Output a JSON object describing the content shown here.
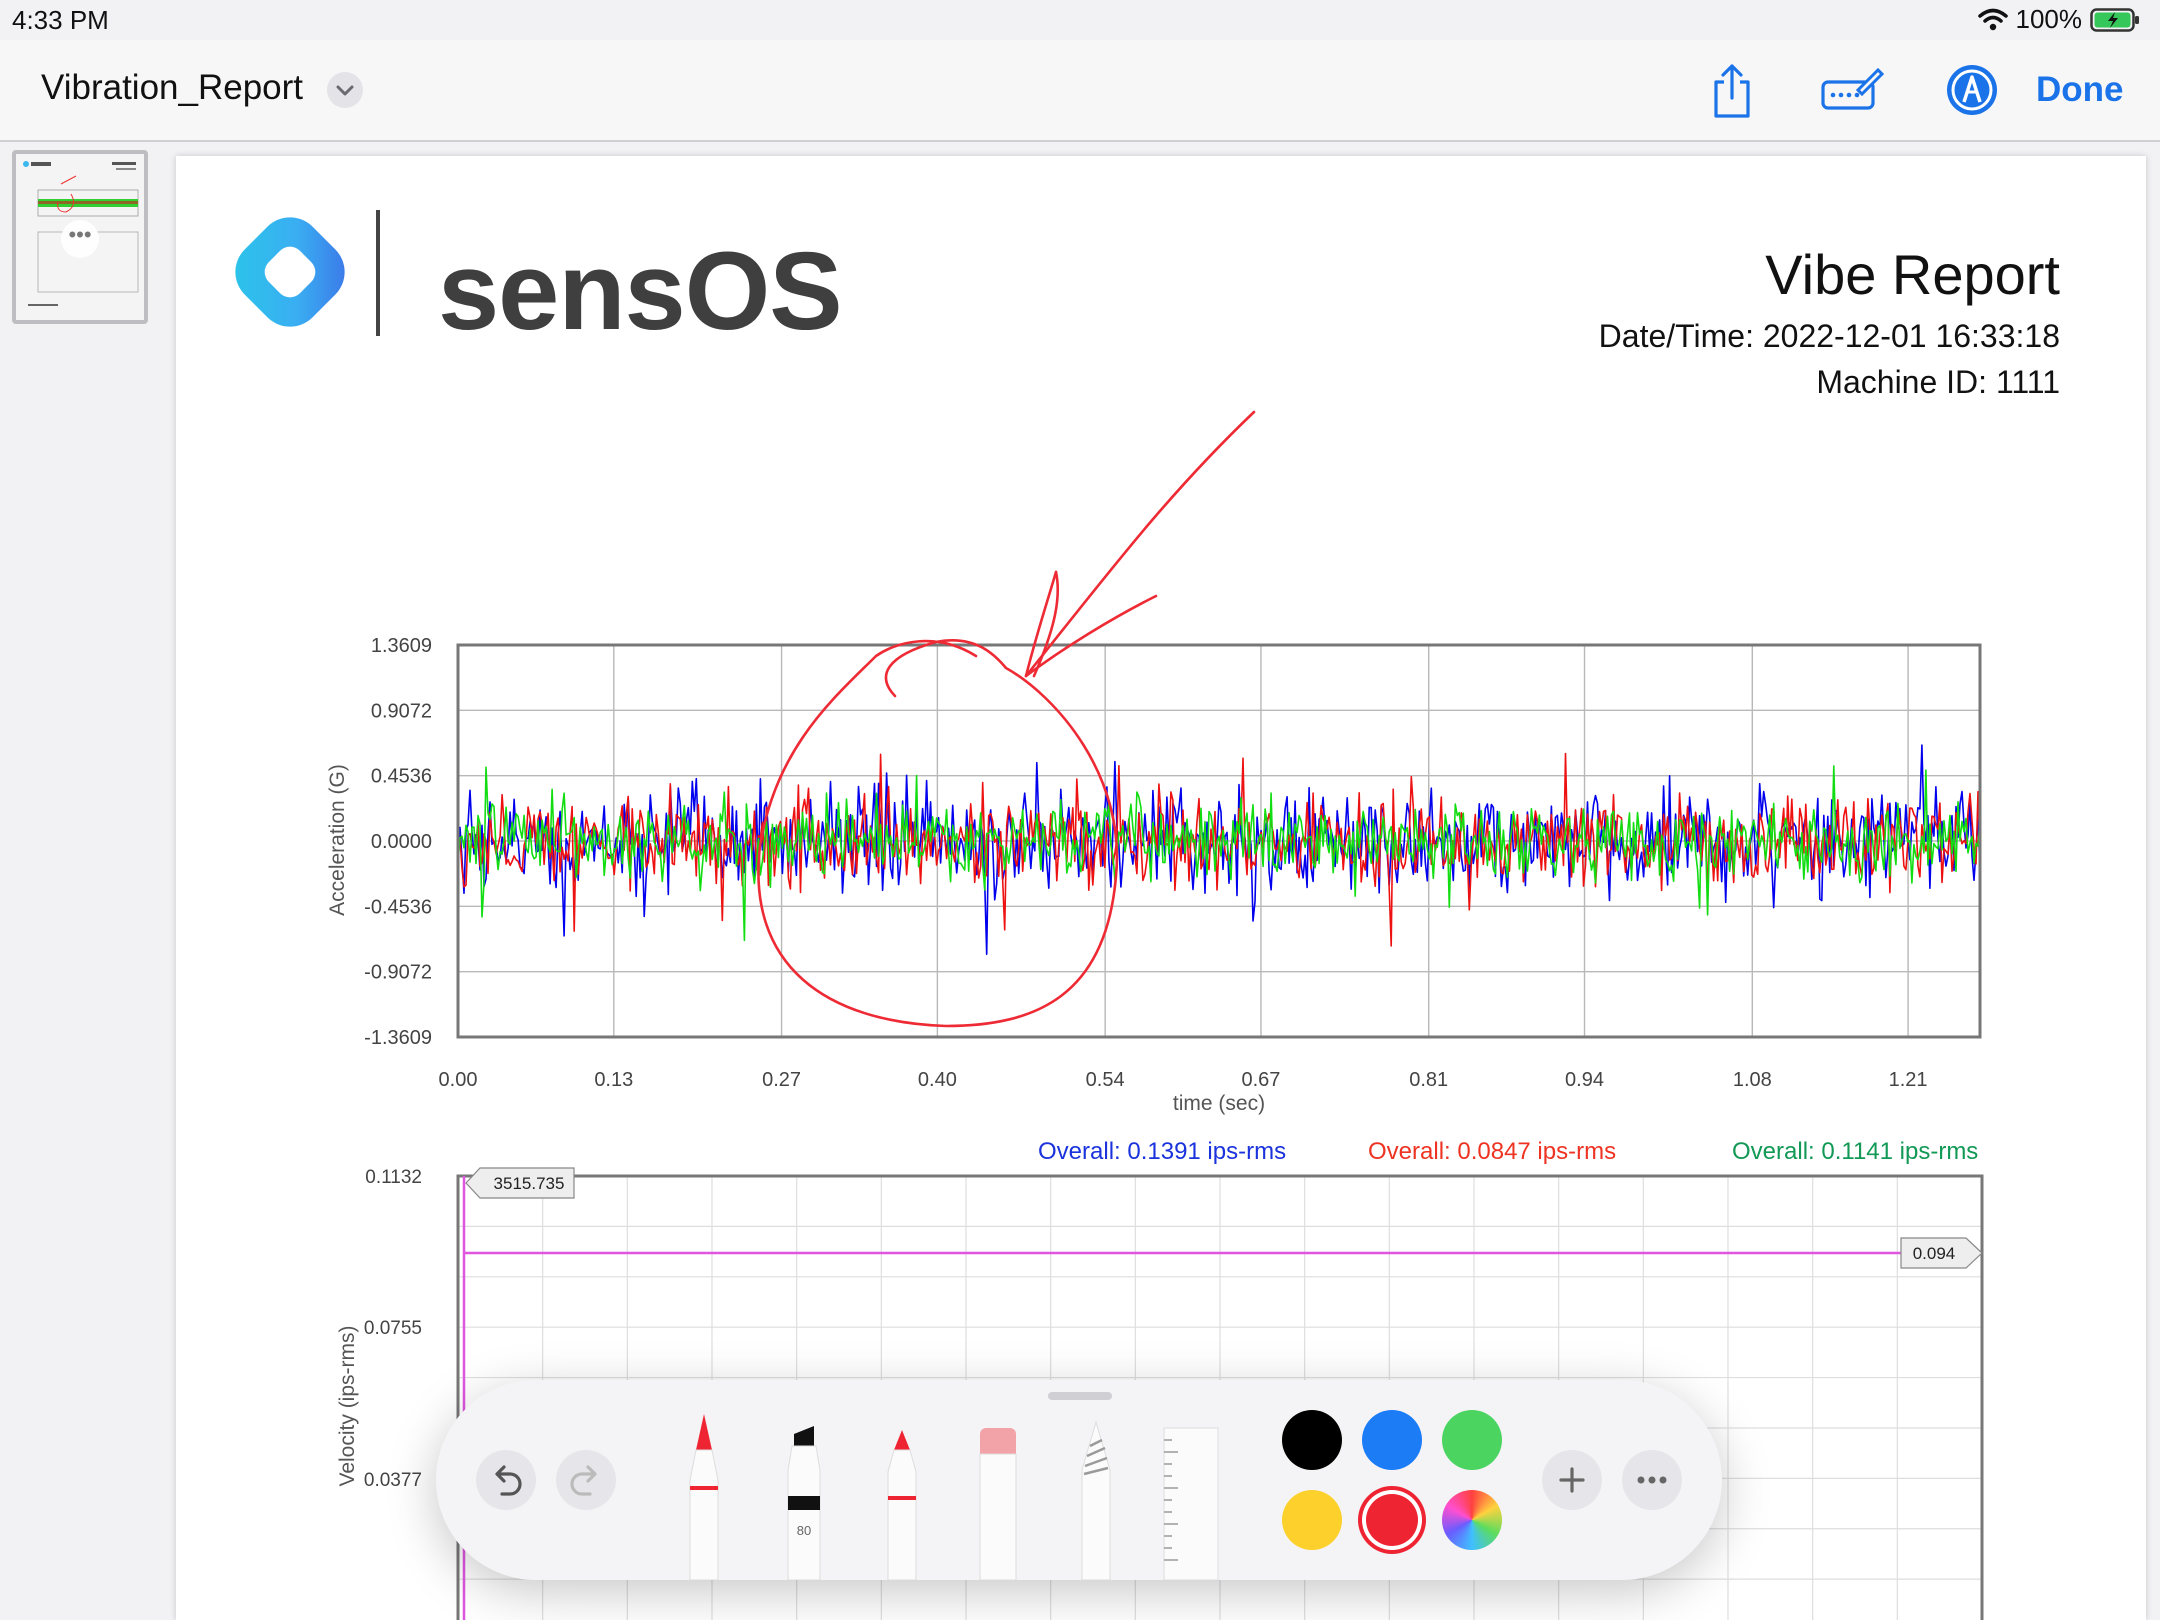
{
  "status_bar": {
    "time": "4:33 PM",
    "battery": "100%"
  },
  "toolbar": {
    "document_title": "Vibration_Report",
    "done_label": "Done",
    "icons": [
      "share-icon",
      "keyboard-pen-icon",
      "markup-icon"
    ]
  },
  "sidebar": {
    "thumbnail_icon": "more-icon"
  },
  "report": {
    "brand": "sensOS",
    "title": "Vibe Report",
    "datetime": "Date/Time: 2022-12-01 16:33:18",
    "machine_id": "Machine ID: 1111"
  },
  "chart_data": [
    {
      "type": "line",
      "xlabel": "time (sec)",
      "ylabel": "Acceleration (G)",
      "x_ticks": [
        "0.00",
        "0.13",
        "0.27",
        "0.40",
        "0.54",
        "0.67",
        "0.81",
        "0.94",
        "1.08",
        "1.21"
      ],
      "y_ticks": [
        "1.3609",
        "0.9072",
        "0.4536",
        "0.0000",
        "-0.4536",
        "-0.9072",
        "-1.3609"
      ],
      "xlim": [
        0,
        1.27
      ],
      "ylim": [
        -1.3609,
        1.3609
      ],
      "series_colors": [
        "#0000ee",
        "#ee1111",
        "#11dd11"
      ],
      "series_amplitude": [
        0.32,
        0.28,
        0.22
      ],
      "grid": true
    },
    {
      "type": "line",
      "ylabel": "Velocity (ips-rms)",
      "y_ticks": [
        "0.1132",
        "0.0755",
        "0.0377"
      ],
      "ylim": [
        0,
        0.1132
      ],
      "overall": [
        {
          "label": "Overall: 0.1391 ips-rms",
          "color": "#1a33dd"
        },
        {
          "label": "Overall: 0.0847 ips-rms",
          "color": "#ee3322"
        },
        {
          "label": "Overall: 0.1141 ips-rms",
          "color": "#119955"
        }
      ],
      "marker_x_label": "3515.735",
      "threshold": {
        "value": 0.094,
        "label": "0.094",
        "color": "#e055e0"
      },
      "grid": true
    }
  ],
  "palette": {
    "colors": [
      "#000000",
      "#1b7cf5",
      "#4cd460",
      "#fdd02c",
      "#ee2433"
    ],
    "selected_color": "#ee2433",
    "marker_width_label": "80",
    "tools": [
      "pen-tool",
      "marker-tool",
      "pencil-tool",
      "eraser-tool",
      "lasso-tool",
      "ruler-tool"
    ]
  }
}
